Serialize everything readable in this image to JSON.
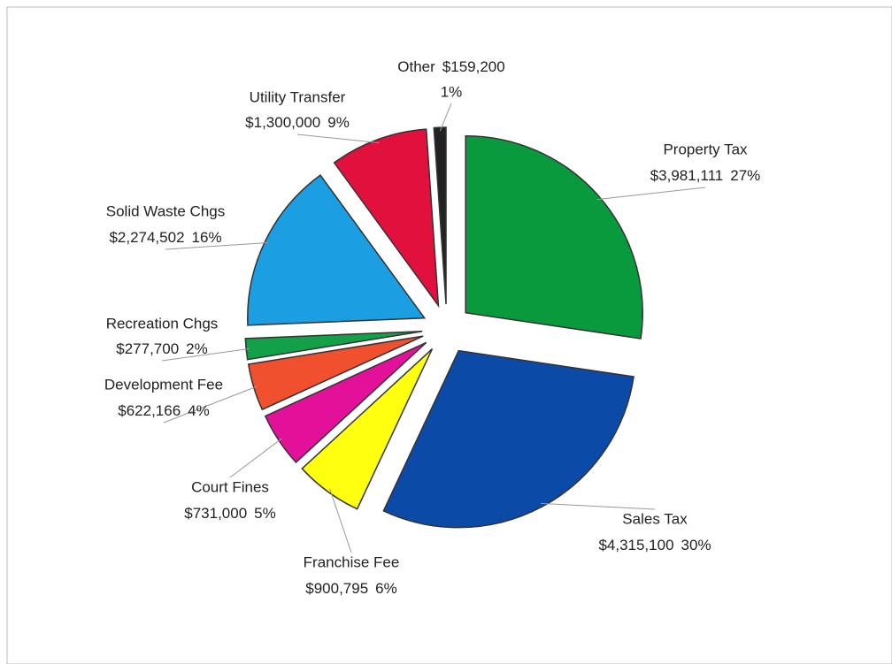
{
  "chart_data": {
    "type": "pie",
    "categories": [
      "Property Tax",
      "Sales Tax",
      "Franchise Fee",
      "Court Fines",
      "Development Fee",
      "Recreation Chgs",
      "Solid Waste Chgs",
      "Utility Transfer",
      "Other"
    ],
    "values": [
      3981111,
      4315100,
      900795,
      731000,
      622166,
      277700,
      2274502,
      1300000,
      159200
    ],
    "value_labels": [
      "$3,981,111",
      "$4,315,100",
      "$900,795",
      "$731,000",
      "$622,166",
      "$277,700",
      "$2,274,502",
      "$1,300,000",
      "$159,200"
    ],
    "percent_labels": [
      "27%",
      "30%",
      "6%",
      "5%",
      "4%",
      "2%",
      "16%",
      "9%",
      "1%"
    ],
    "colors": [
      "#0a9a3e",
      "#0b4aa6",
      "#ffff10",
      "#e3109a",
      "#f0502e",
      "#12a048",
      "#1c9ee2",
      "#e2103c",
      "#222222"
    ]
  }
}
